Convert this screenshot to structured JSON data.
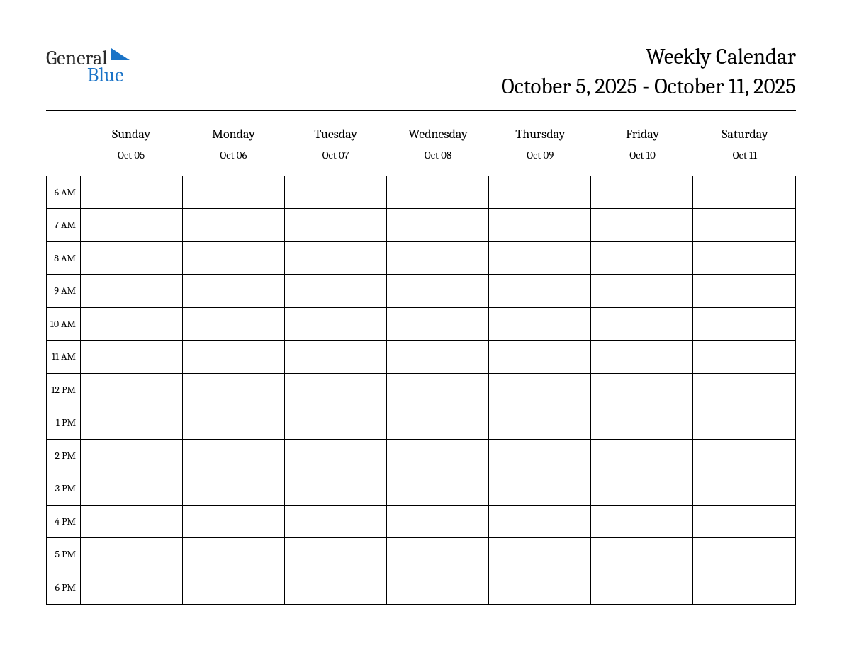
{
  "logo": {
    "text_general": "General",
    "text_blue": "Blue",
    "triangle_color": "#1a73c7",
    "general_color": "#2b2b2b",
    "blue_color": "#1a73c7"
  },
  "header": {
    "title": "Weekly Calendar",
    "date_range": "October 5, 2025 - October 11, 2025"
  },
  "calendar": {
    "type": "table",
    "days": [
      {
        "name": "Sunday",
        "date": "Oct 05"
      },
      {
        "name": "Monday",
        "date": "Oct 06"
      },
      {
        "name": "Tuesday",
        "date": "Oct 07"
      },
      {
        "name": "Wednesday",
        "date": "Oct 08"
      },
      {
        "name": "Thursday",
        "date": "Oct 09"
      },
      {
        "name": "Friday",
        "date": "Oct 10"
      },
      {
        "name": "Saturday",
        "date": "Oct 11"
      }
    ],
    "time_slots": [
      "6 AM",
      "7 AM",
      "8 AM",
      "9 AM",
      "10 AM",
      "11 AM",
      "12 PM",
      "1 PM",
      "2 PM",
      "3 PM",
      "4 PM",
      "5 PM",
      "6 PM"
    ],
    "border_color": "#000000",
    "background_color": "#ffffff",
    "time_column_width": 48,
    "row_height": 46.5,
    "day_name_fontsize": 18,
    "day_date_fontsize": 15,
    "time_label_fontsize": 14,
    "title_fontsize": 31
  }
}
